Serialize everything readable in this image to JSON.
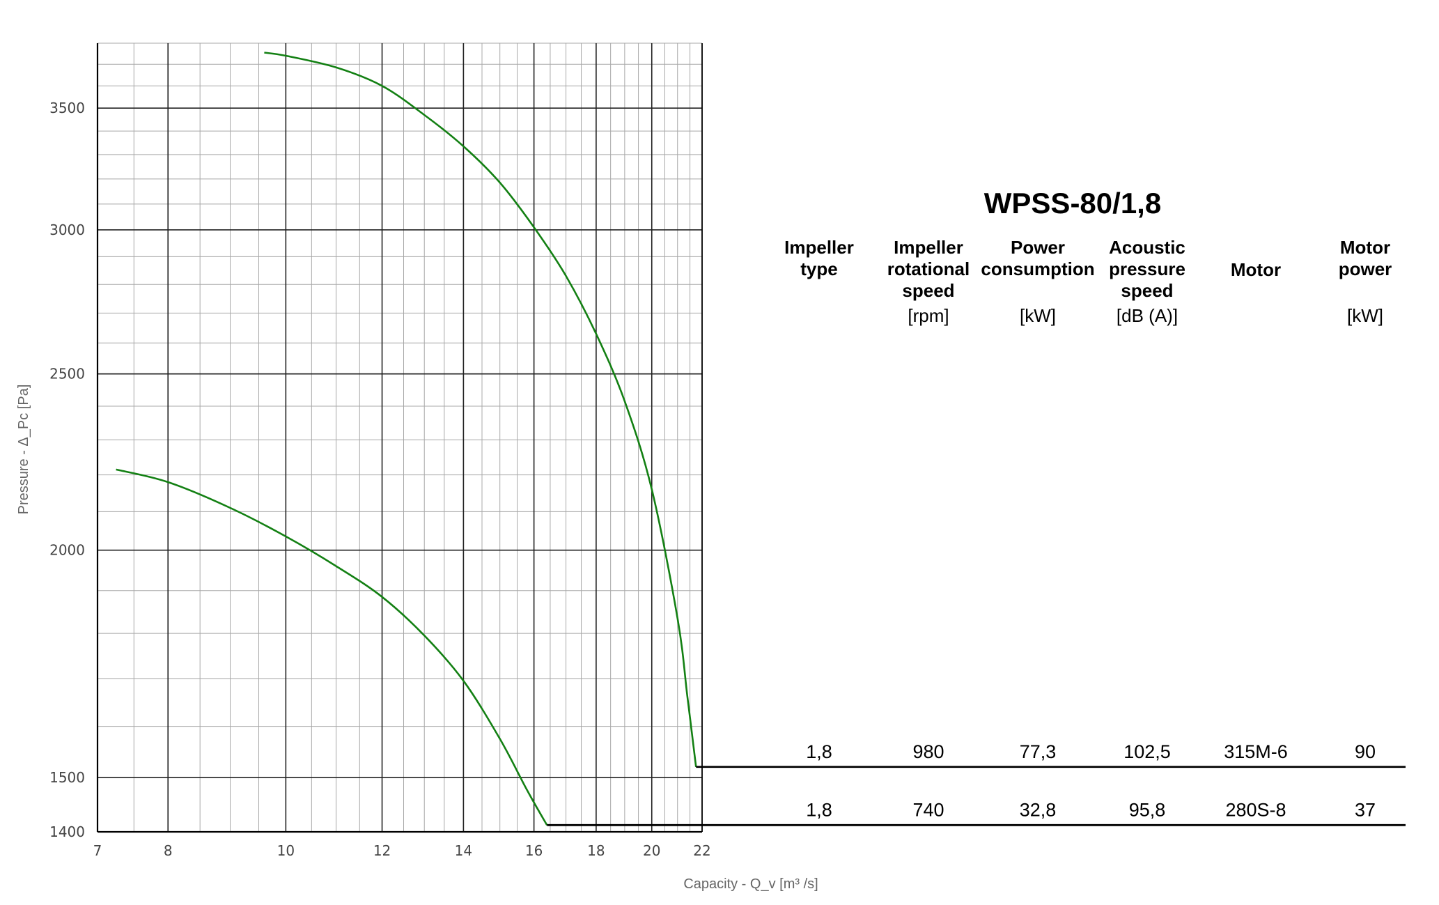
{
  "chart_data": {
    "type": "line",
    "xlabel": "Capacity - Q_v [m³ /s]",
    "ylabel": "Pressure - Δ_Pc [Pa]",
    "x_scale": "log",
    "y_scale": "log",
    "xlim": [
      7,
      22
    ],
    "ylim": [
      1400,
      3800
    ],
    "x_ticks": [
      7,
      8,
      10,
      12,
      14,
      16,
      18,
      20,
      22
    ],
    "y_ticks": [
      1400,
      1500,
      2000,
      2500,
      3000,
      3500
    ],
    "grid": true,
    "series_color": "#138013",
    "series": [
      {
        "points": [
          [
            9.6,
            3755
          ],
          [
            10,
            3740
          ],
          [
            11,
            3685
          ],
          [
            12,
            3600
          ],
          [
            13,
            3470
          ],
          [
            14,
            3335
          ],
          [
            15,
            3185
          ],
          [
            16,
            3010
          ],
          [
            17,
            2830
          ],
          [
            18,
            2630
          ],
          [
            19,
            2415
          ],
          [
            20,
            2160
          ],
          [
            21,
            1835
          ],
          [
            21.4,
            1660
          ],
          [
            21.75,
            1520
          ]
        ],
        "table_row": {
          "impeller_type": "1,8",
          "speed": "980",
          "power_consumption": "77,3",
          "acoustic": "102,5",
          "motor": "315M-6",
          "motor_power": "90"
        }
      },
      {
        "points": [
          [
            7.25,
            2215
          ],
          [
            8,
            2180
          ],
          [
            9,
            2110
          ],
          [
            10,
            2035
          ],
          [
            11,
            1960
          ],
          [
            12,
            1885
          ],
          [
            13,
            1795
          ],
          [
            14,
            1695
          ],
          [
            15,
            1575
          ],
          [
            15.8,
            1475
          ],
          [
            16.4,
            1412
          ]
        ],
        "table_row": {
          "impeller_type": "1,8",
          "speed": "740",
          "power_consumption": "32,8",
          "acoustic": "95,8",
          "motor": "280S-8",
          "motor_power": "37"
        }
      }
    ]
  },
  "table": {
    "title": "WPSS-80/1,8",
    "columns": [
      {
        "head": [
          "Impeller",
          "type"
        ],
        "unit": ""
      },
      {
        "head": [
          "Impeller",
          "rotational",
          "speed"
        ],
        "unit": "[rpm]"
      },
      {
        "head": [
          "Power",
          "consumption"
        ],
        "unit": "[kW]"
      },
      {
        "head": [
          "Acoustic",
          "pressure",
          "speed"
        ],
        "unit": "[dB (A)]"
      },
      {
        "head": [
          "Motor"
        ],
        "unit": ""
      },
      {
        "head": [
          "Motor",
          "power"
        ],
        "unit": "[kW]"
      }
    ]
  }
}
